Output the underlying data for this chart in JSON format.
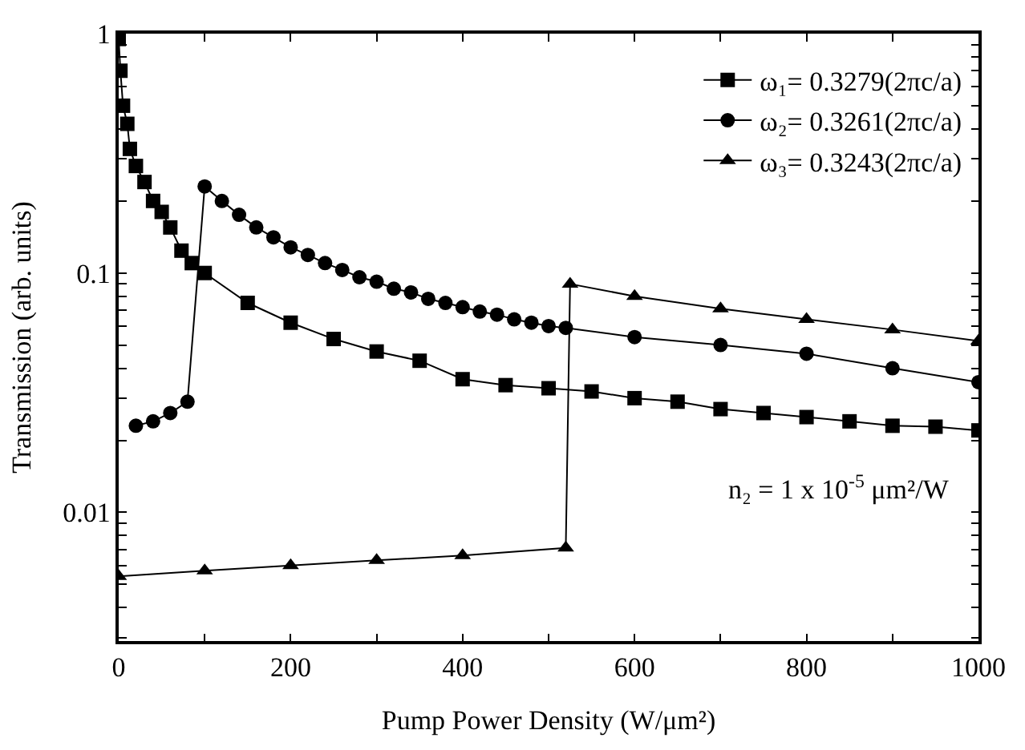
{
  "chart_data": {
    "type": "line",
    "xlabel": "Pump Power Density (W/μm²)",
    "ylabel": "Transmission (arb. units)",
    "log": "y",
    "xlim": [
      0,
      1000
    ],
    "xticks": [
      0,
      {
        "value": 100,
        "label": null
      },
      200,
      {
        "value": 300,
        "label": null
      },
      400,
      {
        "value": 500,
        "label": null
      },
      600,
      {
        "value": 700,
        "label": null
      },
      800,
      {
        "value": 900,
        "label": null
      },
      1000
    ],
    "ylim": [
      0.0029,
      1
    ],
    "yticks": [
      {
        "value": 0.003,
        "label": null
      },
      {
        "value": 0.004,
        "label": null
      },
      {
        "value": 0.005,
        "label": null
      },
      {
        "value": 0.006,
        "label": null
      },
      {
        "value": 0.007,
        "label": null
      },
      {
        "value": 0.008,
        "label": null
      },
      {
        "value": 0.009,
        "label": null
      },
      0.01,
      {
        "value": 0.02,
        "label": null
      },
      {
        "value": 0.03,
        "label": null
      },
      {
        "value": 0.04,
        "label": null
      },
      {
        "value": 0.05,
        "label": null
      },
      {
        "value": 0.06,
        "label": null
      },
      {
        "value": 0.07,
        "label": null
      },
      {
        "value": 0.08,
        "label": null
      },
      {
        "value": 0.09,
        "label": null
      },
      0.1,
      {
        "value": 0.2,
        "label": null
      },
      {
        "value": 0.3,
        "label": null
      },
      {
        "value": 0.4,
        "label": null
      },
      {
        "value": 0.5,
        "label": null
      },
      {
        "value": 0.6,
        "label": null
      },
      {
        "value": 0.7,
        "label": null
      },
      {
        "value": 0.8,
        "label": null
      },
      {
        "value": 0.9,
        "label": null
      },
      1
    ],
    "legend": "top right",
    "annotations": [
      "n₂ = 1 x 10$^{-5}$ μm²/W"
    ],
    "series": [
      {
        "name": "ω₁= 0.3279(2πc/a)",
        "color": "#000000",
        "marker": "square",
        "x": [
          0,
          2,
          5,
          10,
          13,
          20,
          30,
          40,
          50,
          60,
          73,
          85,
          100,
          150,
          200,
          250,
          300,
          350,
          400,
          450,
          500,
          550,
          600,
          650,
          700,
          750,
          800,
          850,
          900,
          950,
          1000
        ],
        "values": [
          0.95,
          0.7,
          0.5,
          0.42,
          0.33,
          0.28,
          0.24,
          0.2,
          0.18,
          0.155,
          0.124,
          0.11,
          0.1,
          0.075,
          0.062,
          0.053,
          0.047,
          0.043,
          0.036,
          0.034,
          0.033,
          0.032,
          0.03,
          0.029,
          0.027,
          0.026,
          0.025,
          0.024,
          0.023,
          0.0228,
          0.022
        ]
      },
      {
        "name": "ω₂= 0.3261(2πc/a)",
        "color": "#000000",
        "marker": "circle",
        "x": [
          20,
          40,
          60,
          80,
          100,
          120,
          140,
          160,
          180,
          200,
          220,
          240,
          260,
          280,
          300,
          320,
          340,
          360,
          380,
          400,
          420,
          440,
          460,
          480,
          500,
          520,
          600,
          700,
          800,
          900,
          1000
        ],
        "values": [
          0.023,
          0.024,
          0.026,
          0.029,
          0.23,
          0.2,
          0.175,
          0.155,
          0.141,
          0.128,
          0.119,
          0.11,
          0.103,
          0.096,
          0.092,
          0.086,
          0.083,
          0.078,
          0.075,
          0.072,
          0.069,
          0.067,
          0.064,
          0.062,
          0.06,
          0.059,
          0.054,
          0.05,
          0.046,
          0.04,
          0.035
        ]
      },
      {
        "name": "ω₃= 0.3243(2πc/a)",
        "color": "#000000",
        "marker": "triangle",
        "x": [
          0,
          100,
          200,
          300,
          400,
          520,
          525,
          600,
          700,
          800,
          900,
          1000
        ],
        "values": [
          0.0054,
          0.0057,
          0.006,
          0.0063,
          0.0066,
          0.0071,
          0.09,
          0.08,
          0.071,
          0.064,
          0.058,
          0.052
        ]
      }
    ]
  }
}
